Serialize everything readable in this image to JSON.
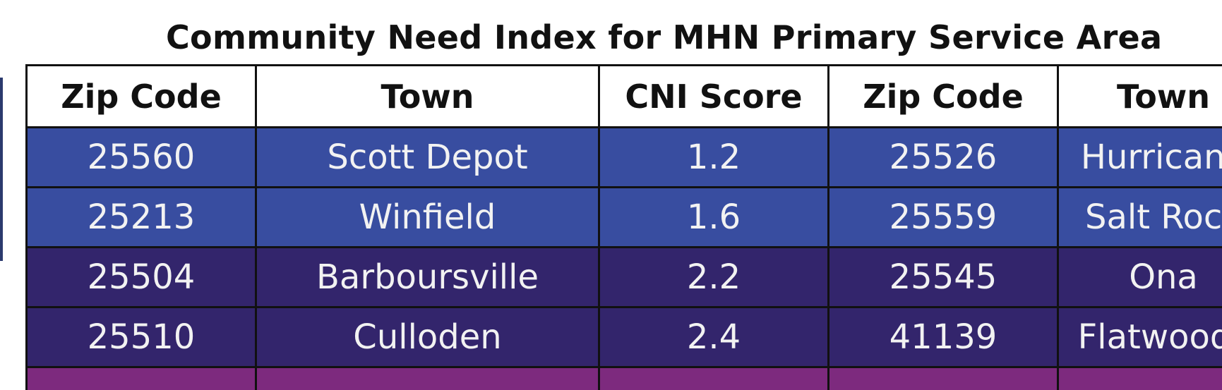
{
  "title": "Community Need Index for MHN Primary Service Area",
  "columns": [
    "Zip Code",
    "Town",
    "CNI Score",
    "Zip Code",
    "Town"
  ],
  "rows": [
    {
      "zip1": "25560",
      "town1": "Scott Depot",
      "cni1": "1.2",
      "zip2": "25526",
      "town2": "Hurricane",
      "band": "blue"
    },
    {
      "zip1": "25213",
      "town1": "Winfield",
      "cni1": "1.6",
      "zip2": "25559",
      "town2": "Salt Rock",
      "band": "blue"
    },
    {
      "zip1": "25504",
      "town1": "Barboursville",
      "cni1": "2.2",
      "zip2": "25545",
      "town2": "Ona",
      "band": "indigo"
    },
    {
      "zip1": "25510",
      "town1": "Culloden",
      "cni1": "2.4",
      "zip2": "41139",
      "town2": "Flatwoods",
      "band": "indigo"
    }
  ],
  "colors": {
    "blue_band": "#384da0",
    "indigo_band": "#33256c",
    "magenta_band": "#7d2a7e"
  }
}
